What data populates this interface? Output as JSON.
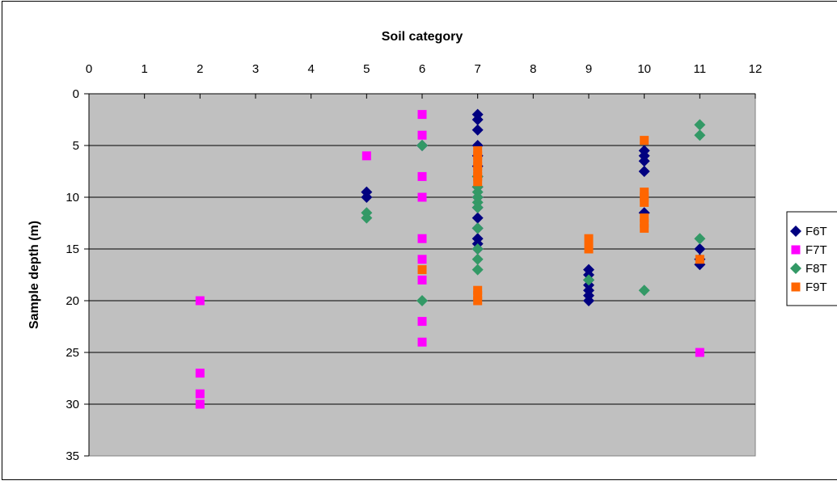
{
  "chart_data": {
    "type": "scatter",
    "title": "",
    "xlabel": "Soil category",
    "ylabel": "Sample depth (m)",
    "xlim": [
      0,
      12
    ],
    "ylim": [
      0,
      35
    ],
    "y_inverted": true,
    "x_axis_position": "top",
    "xticks": [
      0,
      1,
      2,
      3,
      4,
      5,
      6,
      7,
      8,
      9,
      10,
      11,
      12
    ],
    "yticks": [
      0,
      5,
      10,
      15,
      20,
      25,
      30,
      35
    ],
    "grid": "horizontal",
    "plot_background": "#c0c0c0",
    "legend": "right",
    "series": [
      {
        "name": "F6T",
        "color": "#000080",
        "marker": "diamond",
        "points": [
          [
            5,
            9.5
          ],
          [
            5,
            10
          ],
          [
            6,
            5
          ],
          [
            7,
            2
          ],
          [
            7,
            2.5
          ],
          [
            7,
            3.5
          ],
          [
            7,
            5
          ],
          [
            7,
            6
          ],
          [
            7,
            7
          ],
          [
            7,
            8
          ],
          [
            7,
            9
          ],
          [
            7,
            10
          ],
          [
            7,
            11
          ],
          [
            7,
            12
          ],
          [
            7,
            13
          ],
          [
            7,
            14
          ],
          [
            7,
            14.5
          ],
          [
            7,
            15
          ],
          [
            9,
            17
          ],
          [
            9,
            17.5
          ],
          [
            9,
            18
          ],
          [
            9,
            18.5
          ],
          [
            9,
            19
          ],
          [
            9,
            19.5
          ],
          [
            9,
            20
          ],
          [
            10,
            5.5
          ],
          [
            10,
            6
          ],
          [
            10,
            6.5
          ],
          [
            10,
            7.5
          ],
          [
            10,
            11.5
          ],
          [
            11,
            15
          ],
          [
            11,
            16
          ],
          [
            11,
            16.5
          ]
        ]
      },
      {
        "name": "F7T",
        "color": "#ff00ff",
        "marker": "square",
        "points": [
          [
            2,
            20
          ],
          [
            2,
            27
          ],
          [
            2,
            29
          ],
          [
            2,
            30
          ],
          [
            5,
            6
          ],
          [
            6,
            2
          ],
          [
            6,
            4
          ],
          [
            6,
            8
          ],
          [
            6,
            10
          ],
          [
            6,
            14
          ],
          [
            6,
            16
          ],
          [
            6,
            18
          ],
          [
            6,
            22
          ],
          [
            6,
            24
          ],
          [
            11,
            25
          ]
        ]
      },
      {
        "name": "F8T",
        "color": "#339966",
        "marker": "diamond",
        "points": [
          [
            5,
            11.5
          ],
          [
            5,
            12
          ],
          [
            6,
            5
          ],
          [
            6,
            20
          ],
          [
            7,
            8
          ],
          [
            7,
            9
          ],
          [
            7,
            9.5
          ],
          [
            7,
            10
          ],
          [
            7,
            10.5
          ],
          [
            7,
            11
          ],
          [
            7,
            13
          ],
          [
            7,
            15
          ],
          [
            7,
            16
          ],
          [
            7,
            17
          ],
          [
            9,
            18
          ],
          [
            10,
            19
          ],
          [
            11,
            3
          ],
          [
            11,
            4
          ],
          [
            11,
            14
          ]
        ]
      },
      {
        "name": "F9T",
        "color": "#ff6600",
        "marker": "square",
        "points": [
          [
            6,
            17
          ],
          [
            7,
            5.5
          ],
          [
            7,
            6
          ],
          [
            7,
            6.5
          ],
          [
            7,
            7
          ],
          [
            7,
            7.5
          ],
          [
            7,
            8
          ],
          [
            7,
            8.5
          ],
          [
            7,
            19
          ],
          [
            7,
            19.5
          ],
          [
            7,
            20
          ],
          [
            9,
            14
          ],
          [
            9,
            14.5
          ],
          [
            9,
            15
          ],
          [
            10,
            4.5
          ],
          [
            10,
            9.5
          ],
          [
            10,
            10
          ],
          [
            10,
            10.5
          ],
          [
            10,
            12
          ],
          [
            10,
            12.5
          ],
          [
            10,
            13
          ],
          [
            11,
            16
          ]
        ]
      }
    ]
  }
}
